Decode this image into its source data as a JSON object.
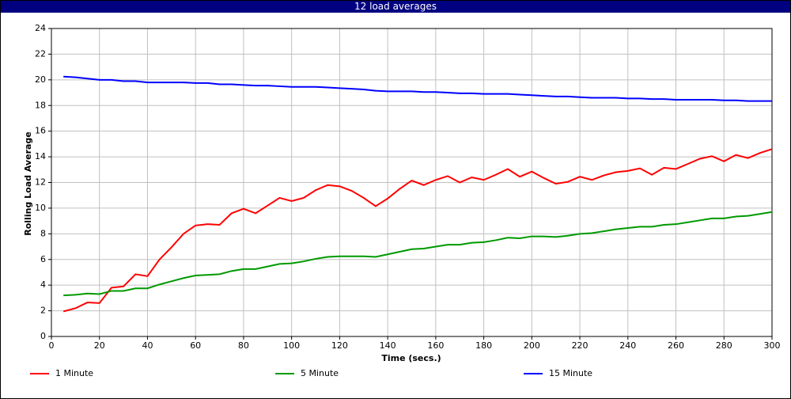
{
  "chart_data": {
    "type": "line",
    "title": "12 load averages",
    "x_label": "Time (secs.)",
    "y_label": "Rolling Load Average",
    "x": [
      5,
      10,
      15,
      20,
      25,
      30,
      35,
      40,
      45,
      50,
      55,
      60,
      65,
      70,
      75,
      80,
      85,
      90,
      95,
      100,
      105,
      110,
      115,
      120,
      125,
      130,
      135,
      140,
      145,
      150,
      155,
      160,
      165,
      170,
      175,
      180,
      185,
      190,
      195,
      200,
      205,
      210,
      215,
      220,
      225,
      230,
      235,
      240,
      245,
      250,
      255,
      260,
      265,
      270,
      275,
      280,
      285,
      290,
      295,
      300
    ],
    "series": [
      {
        "name": "1 Minute",
        "color": "#ff0000",
        "values": [
          1.95,
          2.2,
          2.65,
          2.6,
          3.8,
          3.9,
          4.85,
          4.7,
          6.0,
          6.95,
          8.0,
          8.65,
          8.75,
          8.7,
          9.6,
          9.95,
          9.6,
          10.2,
          10.8,
          10.55,
          10.8,
          11.4,
          11.8,
          11.7,
          11.35,
          10.8,
          10.15,
          10.75,
          11.5,
          12.15,
          11.8,
          12.2,
          12.5,
          12.0,
          12.4,
          12.2,
          12.6,
          13.05,
          12.45,
          12.85,
          12.35,
          11.9,
          12.05,
          12.45,
          12.2,
          12.55,
          12.8,
          12.9,
          13.1,
          12.6,
          13.15,
          13.05,
          13.45,
          13.85,
          14.05,
          13.65,
          14.15,
          13.9,
          14.3,
          14.6
        ]
      },
      {
        "name": "5 Minute",
        "color": "#009900",
        "values": [
          3.2,
          3.25,
          3.35,
          3.3,
          3.55,
          3.55,
          3.75,
          3.75,
          4.05,
          4.3,
          4.55,
          4.75,
          4.8,
          4.85,
          5.1,
          5.25,
          5.25,
          5.45,
          5.65,
          5.7,
          5.85,
          6.05,
          6.2,
          6.25,
          6.25,
          6.25,
          6.2,
          6.4,
          6.6,
          6.8,
          6.85,
          7.0,
          7.15,
          7.15,
          7.3,
          7.35,
          7.5,
          7.7,
          7.65,
          7.8,
          7.8,
          7.75,
          7.85,
          8.0,
          8.05,
          8.2,
          8.35,
          8.45,
          8.55,
          8.55,
          8.7,
          8.75,
          8.9,
          9.05,
          9.2,
          9.2,
          9.35,
          9.4,
          9.55,
          9.7
        ]
      },
      {
        "name": "15 Minute",
        "color": "#0000ff",
        "values": [
          20.25,
          20.2,
          20.1,
          20.0,
          20.0,
          19.9,
          19.9,
          19.8,
          19.8,
          19.8,
          19.8,
          19.75,
          19.75,
          19.65,
          19.65,
          19.6,
          19.55,
          19.55,
          19.5,
          19.45,
          19.45,
          19.45,
          19.4,
          19.35,
          19.3,
          19.25,
          19.15,
          19.1,
          19.1,
          19.1,
          19.05,
          19.05,
          19.0,
          18.95,
          18.95,
          18.9,
          18.9,
          18.9,
          18.85,
          18.8,
          18.75,
          18.7,
          18.7,
          18.65,
          18.6,
          18.6,
          18.6,
          18.55,
          18.55,
          18.5,
          18.5,
          18.45,
          18.45,
          18.45,
          18.45,
          18.4,
          18.4,
          18.35,
          18.35,
          18.35
        ]
      }
    ],
    "xlim": [
      0,
      300
    ],
    "xticks": [
      0,
      20,
      40,
      60,
      80,
      100,
      120,
      140,
      160,
      180,
      200,
      220,
      240,
      260,
      280,
      300
    ],
    "ylim": [
      0,
      24
    ],
    "yticks": [
      0,
      2,
      4,
      6,
      8,
      10,
      12,
      14,
      16,
      18,
      20,
      22,
      24
    ],
    "grid": true,
    "legend": "bottom"
  }
}
